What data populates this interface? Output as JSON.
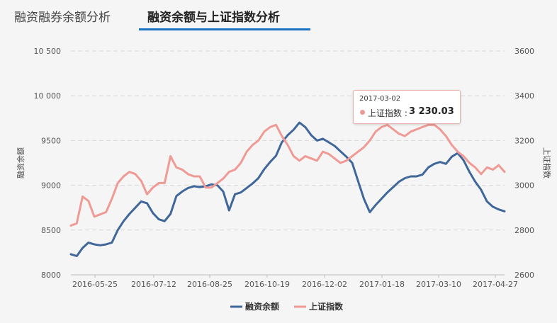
{
  "tabs": [
    {
      "label": "融资融券余额分析"
    },
    {
      "label": "融资余额与上证指数分析"
    }
  ],
  "tooltip": {
    "date": "2017-03-02",
    "label": "上证指数 :",
    "value": "3 230.03"
  },
  "chart_data": {
    "type": "line",
    "ylabel_left": "融资余额",
    "ylabel_right": "上证指数",
    "ylim_left": [
      8000,
      10500
    ],
    "ylim_right": [
      2600,
      3600
    ],
    "yticks_left": [
      "8000",
      "8500",
      "9000",
      "9500",
      "10 000",
      "10 500"
    ],
    "yticks_right": [
      "2600",
      "2800",
      "3000",
      "3200",
      "3400",
      "3600"
    ],
    "xticks": [
      "2016-05-25",
      "2016-07-12",
      "2016-08-25",
      "2016-10-19",
      "2016-12-02",
      "2017-01-18",
      "2017-03-10",
      "2017-04-27"
    ],
    "grid": true,
    "legend_position": "bottom",
    "series": [
      {
        "name": "融资余额",
        "axis": "left",
        "color": "#40679a",
        "values": [
          8230,
          8210,
          8300,
          8360,
          8340,
          8330,
          8340,
          8360,
          8500,
          8600,
          8680,
          8750,
          8820,
          8800,
          8690,
          8620,
          8600,
          8680,
          8880,
          8930,
          8970,
          8990,
          8980,
          8990,
          9010,
          9000,
          8930,
          8720,
          8900,
          8920,
          8970,
          9020,
          9080,
          9180,
          9260,
          9330,
          9480,
          9560,
          9620,
          9700,
          9650,
          9560,
          9500,
          9520,
          9480,
          9440,
          9380,
          9320,
          9250,
          9050,
          8850,
          8700,
          8780,
          8850,
          8920,
          8980,
          9040,
          9080,
          9100,
          9100,
          9120,
          9200,
          9240,
          9260,
          9240,
          9320,
          9360,
          9280,
          9150,
          9040,
          8950,
          8820,
          8760,
          8730,
          8710
        ],
        "comment": "approximate weekly values 2016-05 to 2017-05"
      },
      {
        "name": "上证指数",
        "axis": "right",
        "color": "#ef9a95",
        "values": [
          2820,
          2830,
          2950,
          2930,
          2860,
          2870,
          2880,
          2940,
          3010,
          3040,
          3060,
          3050,
          3020,
          2960,
          2990,
          3010,
          3010,
          3130,
          3080,
          3070,
          3050,
          3040,
          3040,
          2990,
          2990,
          3010,
          3030,
          3060,
          3070,
          3100,
          3150,
          3180,
          3200,
          3240,
          3260,
          3270,
          3220,
          3180,
          3130,
          3110,
          3130,
          3120,
          3110,
          3150,
          3140,
          3120,
          3100,
          3110,
          3130,
          3150,
          3170,
          3200,
          3240,
          3260,
          3270,
          3250,
          3230,
          3220,
          3240,
          3250,
          3260,
          3270,
          3270,
          3250,
          3220,
          3180,
          3150,
          3130,
          3100,
          3080,
          3050,
          3080,
          3070,
          3090,
          3060
        ]
      }
    ]
  },
  "legend": [
    {
      "label": "融资余额"
    },
    {
      "label": "上证指数"
    }
  ]
}
